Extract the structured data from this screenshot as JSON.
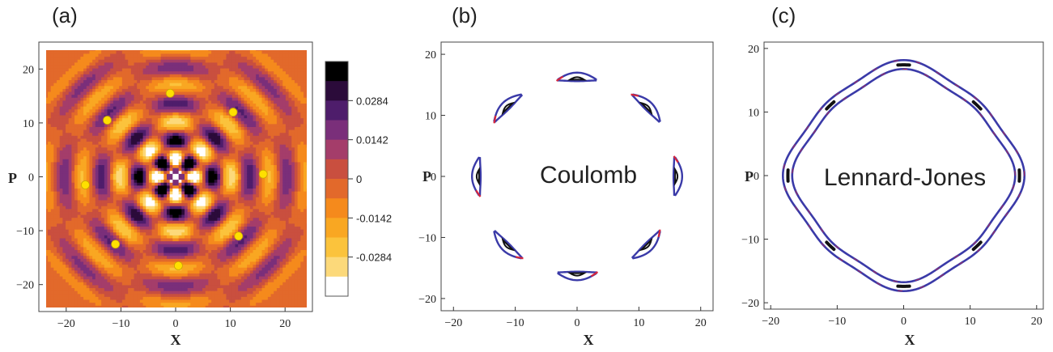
{
  "chart_data": [
    {
      "type": "heatmap",
      "panel_label": "(a)",
      "xlabel": "X",
      "ylabel": "P",
      "xlim": [
        -25,
        25
      ],
      "ylim": [
        -25,
        25
      ],
      "xticks": [
        -20,
        -10,
        0,
        10,
        20
      ],
      "yticks": [
        -20,
        -10,
        0,
        10,
        20
      ],
      "colorbar": {
        "ticks": [
          0.0284,
          0.0142,
          0,
          -0.0142,
          -0.0284
        ],
        "tick_labels": [
          "0.0284",
          "0.0142",
          "0",
          "-0.0142",
          "-0.0284"
        ],
        "levels": [
          "#000000",
          "#2b0b3a",
          "#4e1d6b",
          "#7a2f7a",
          "#a43d6a",
          "#c94f3f",
          "#e2692b",
          "#f58a1c",
          "#f9a722",
          "#fbc33c",
          "#fcd97a",
          "#ffffff"
        ]
      },
      "markers": {
        "color": "#ffe000",
        "points": [
          [
            -1,
            15.5
          ],
          [
            10.5,
            12
          ],
          [
            16,
            0.5
          ],
          [
            11.5,
            -11
          ],
          [
            0.5,
            -16.5
          ],
          [
            -11,
            -12.5
          ],
          [
            -16.5,
            -1.5
          ],
          [
            -12.5,
            10.5
          ]
        ]
      }
    },
    {
      "type": "scatter",
      "panel_label": "(b)",
      "annotation": "Coulomb",
      "xlabel": "X",
      "ylabel": "P",
      "xlim": [
        -22,
        22
      ],
      "ylim": [
        -22,
        22
      ],
      "xticks": [
        -20,
        -10,
        0,
        10,
        20
      ],
      "yticks": [
        -20,
        -10,
        0,
        10,
        20
      ],
      "ring_radius": 16.2,
      "island_angles_deg": [
        0,
        45,
        90,
        135,
        180,
        225,
        270,
        315
      ],
      "series_colors": [
        "#3a3aa8",
        "#d8263c",
        "#111111"
      ]
    },
    {
      "type": "line",
      "panel_label": "(c)",
      "annotation": "Lennard-Jones",
      "xlabel": "X",
      "ylabel": "P",
      "xlim": [
        -21,
        21
      ],
      "ylim": [
        -21,
        21
      ],
      "xticks": [
        -20,
        -10,
        0,
        10,
        20
      ],
      "yticks": [
        -20,
        -10,
        0,
        10,
        20
      ],
      "orbit_radii": [
        16.9,
        15.6
      ],
      "series_colors": [
        "#3a3aa8",
        "#d8263c",
        "#111111"
      ]
    }
  ]
}
